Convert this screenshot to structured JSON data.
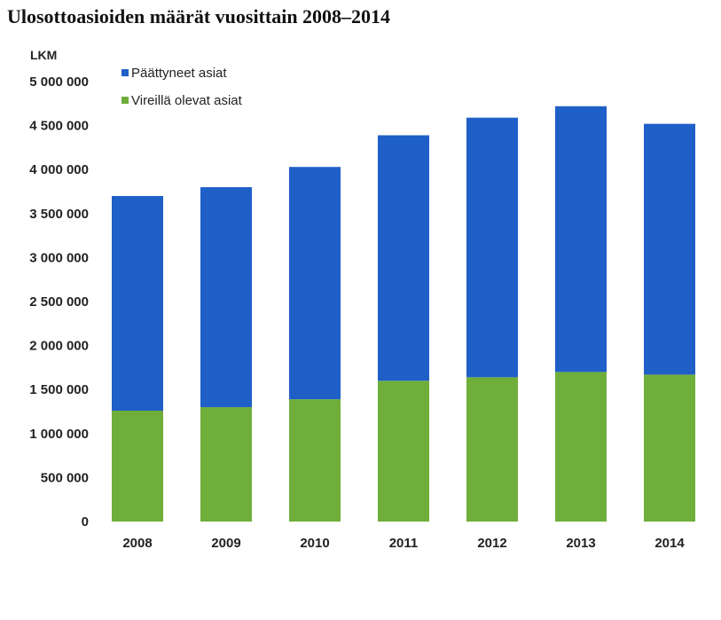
{
  "chart_data": {
    "type": "bar",
    "stacked": true,
    "title": "Ulosottoasioiden määrät vuosittain 2008–2014",
    "ylabel": "LKM",
    "xlabel": "",
    "categories": [
      "2008",
      "2009",
      "2010",
      "2011",
      "2012",
      "2013",
      "2014"
    ],
    "ylim": [
      0,
      5000000
    ],
    "yticks": [
      0,
      500000,
      1000000,
      1500000,
      2000000,
      2500000,
      3000000,
      3500000,
      4000000,
      4500000,
      5000000
    ],
    "ytick_labels": [
      "0",
      "500 000",
      "1 000 000",
      "1 500 000",
      "2 000 000",
      "2 500 000",
      "3 000 000",
      "3 500 000",
      "4 000 000",
      "4 500 000",
      "5 000 000"
    ],
    "legend_position": "top-left",
    "grid": false,
    "series": [
      {
        "name": "Vireillä olevat asiat",
        "color": "#6fae3a",
        "values": [
          1260000,
          1300000,
          1390000,
          1600000,
          1640000,
          1700000,
          1670000
        ]
      },
      {
        "name": "Päättyneet asiat",
        "color": "#1f5fc8",
        "values": [
          2440000,
          2500000,
          2640000,
          2790000,
          2950000,
          3020000,
          2850000
        ]
      }
    ]
  }
}
